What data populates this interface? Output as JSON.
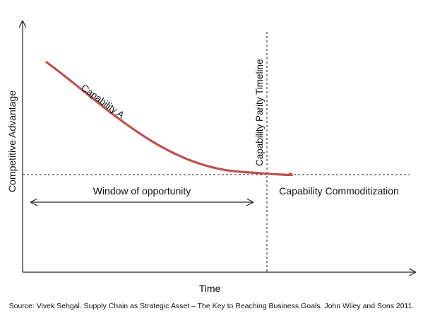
{
  "diagram": {
    "y_axis_label": "Competitive Advantage",
    "x_axis_label": "Time",
    "curve_label": "Capability A",
    "parity_label": "Capability Parity Timeline",
    "window_label": "Window of opportunity",
    "commoditization_label": "Capability Commoditization",
    "source": "Source: Vivek Sehgal. Supply Chain as Strategic Asset – The Key to Reaching Business Goals. John Wiley and Sons 2011.",
    "colors": {
      "curve": "#c0504d",
      "axes": "#222222",
      "text": "#111111"
    }
  }
}
